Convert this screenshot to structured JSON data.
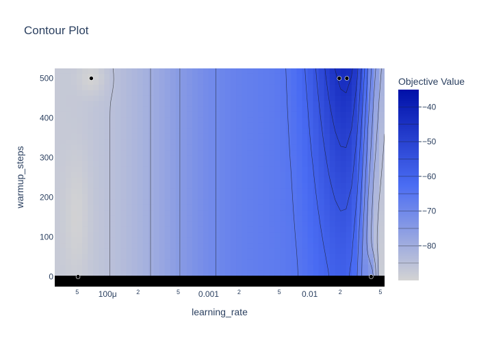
{
  "chart_data": {
    "type": "contour",
    "title": "Contour Plot",
    "xlabel": "learning_rate",
    "ylabel": "warmup_steps",
    "x_scale": "log",
    "xlim": [
      3e-05,
      0.055
    ],
    "ylim": [
      -25,
      525
    ],
    "x_major_ticks": [
      {
        "value": 0.0001,
        "label": "100μ"
      },
      {
        "value": 0.001,
        "label": "0.001"
      },
      {
        "value": 0.01,
        "label": "0.01"
      }
    ],
    "x_minor_ticks": [
      {
        "value": 5e-05,
        "label": "5"
      },
      {
        "value": 0.0002,
        "label": "2"
      },
      {
        "value": 0.0005,
        "label": "5"
      },
      {
        "value": 0.002,
        "label": "2"
      },
      {
        "value": 0.005,
        "label": "5"
      },
      {
        "value": 0.02,
        "label": "2"
      },
      {
        "value": 0.05,
        "label": "5"
      }
    ],
    "y_ticks": [
      {
        "value": 0,
        "label": "0"
      },
      {
        "value": 100,
        "label": "100"
      },
      {
        "value": 200,
        "label": "200"
      },
      {
        "value": 300,
        "label": "300"
      },
      {
        "value": 400,
        "label": "400"
      },
      {
        "value": 500,
        "label": "500"
      }
    ],
    "colorbar": {
      "title": "Objective Value",
      "range": [
        -90,
        -35
      ],
      "ticks": [
        {
          "value": -40,
          "label": "−40"
        },
        {
          "value": -50,
          "label": "−50"
        },
        {
          "value": -60,
          "label": "−60"
        },
        {
          "value": -70,
          "label": "−70"
        },
        {
          "value": -80,
          "label": "−80"
        }
      ],
      "contour_levels": [
        -85,
        -80,
        -75,
        -70,
        -65,
        -60,
        -55,
        -50,
        -45,
        -40
      ],
      "colors": {
        "low": "#d3d3d3",
        "mid": "#4a6cf3",
        "high": "#0010a8"
      }
    },
    "trial_points": [
      {
        "learning_rate": 5.1e-05,
        "warmup_steps": 0
      },
      {
        "learning_rate": 6.9e-05,
        "warmup_steps": 500
      },
      {
        "learning_rate": 0.0196,
        "warmup_steps": 500
      },
      {
        "learning_rate": 0.0233,
        "warmup_steps": 500
      },
      {
        "learning_rate": 0.0405,
        "warmup_steps": 0
      }
    ]
  }
}
